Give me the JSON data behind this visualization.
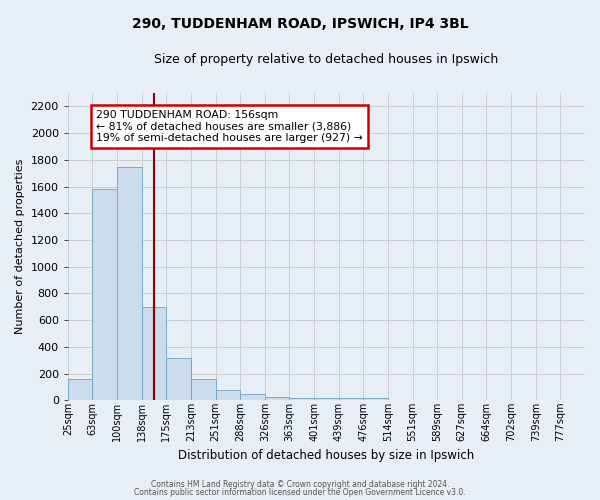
{
  "title": "290, TUDDENHAM ROAD, IPSWICH, IP4 3BL",
  "subtitle": "Size of property relative to detached houses in Ipswich",
  "xlabel": "Distribution of detached houses by size in Ipswich",
  "ylabel": "Number of detached properties",
  "bar_labels": [
    "25sqm",
    "63sqm",
    "100sqm",
    "138sqm",
    "175sqm",
    "213sqm",
    "251sqm",
    "288sqm",
    "326sqm",
    "363sqm",
    "401sqm",
    "439sqm",
    "476sqm",
    "514sqm",
    "551sqm",
    "589sqm",
    "627sqm",
    "664sqm",
    "702sqm",
    "739sqm",
    "777sqm"
  ],
  "bar_values": [
    160,
    1580,
    1750,
    700,
    315,
    160,
    80,
    50,
    25,
    15,
    15,
    20,
    15,
    0,
    0,
    0,
    0,
    0,
    0,
    0,
    0
  ],
  "bar_color": "#cddcec",
  "bar_edgecolor": "#7aaac8",
  "grid_color": "#cccccc",
  "bg_color": "#e8eef5",
  "red_line_x": 3.49,
  "red_line_color": "#8b0000",
  "annotation_text": "290 TUDDENHAM ROAD: 156sqm\n← 81% of detached houses are smaller (3,886)\n19% of semi-detached houses are larger (927) →",
  "annotation_box_facecolor": "#ffffff",
  "annotation_box_edgecolor": "#cc0000",
  "ylim": [
    0,
    2300
  ],
  "yticks": [
    0,
    200,
    400,
    600,
    800,
    1000,
    1200,
    1400,
    1600,
    1800,
    2000,
    2200
  ],
  "footer1": "Contains HM Land Registry data © Crown copyright and database right 2024.",
  "footer2": "Contains public sector information licensed under the Open Government Licence v3.0."
}
